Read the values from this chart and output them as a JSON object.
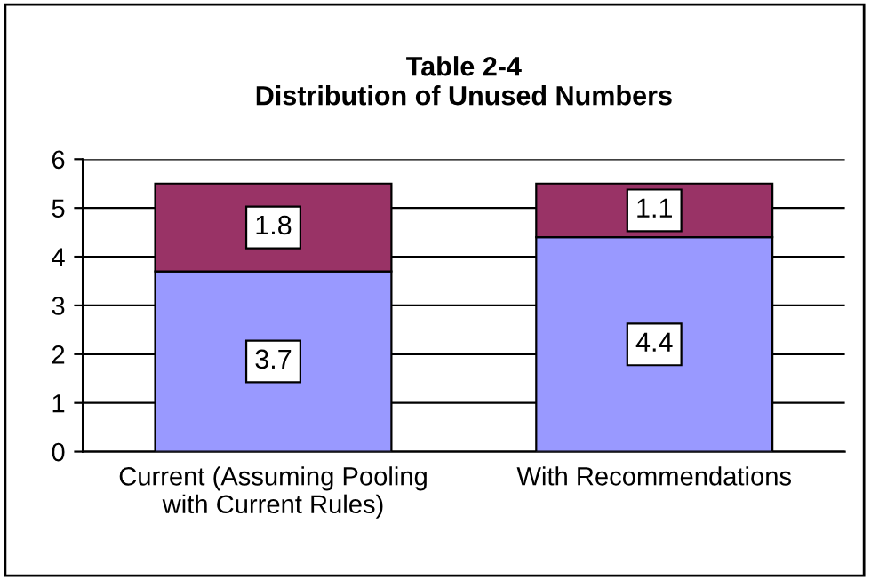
{
  "chart_data": {
    "type": "bar",
    "title": "Table 2-4\nDistribution of Unused Numbers",
    "categories": [
      "Current (Assuming Pooling\nwith Current Rules)",
      "With Recommendations"
    ],
    "series": [
      {
        "color": "#9999ff",
        "values": [
          3.7,
          4.4
        ]
      },
      {
        "color": "#993366",
        "values": [
          1.8,
          1.1
        ]
      }
    ],
    "stacked": true,
    "data_labels": true,
    "ylim": [
      0,
      6
    ],
    "yticks": [
      0,
      1,
      2,
      3,
      4,
      5,
      6
    ],
    "grid": "y"
  }
}
